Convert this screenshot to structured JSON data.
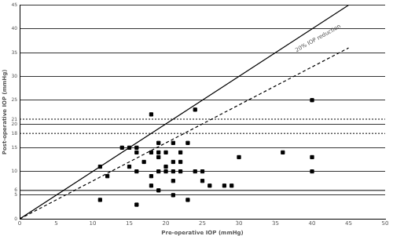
{
  "chart_data": {
    "type": "scatter",
    "x_label": "Pre-operative IOP (mmHg)",
    "y_label": "Post-operative IOP (mmHg)",
    "xlim": [
      0,
      50
    ],
    "xticks": [
      0,
      5,
      10,
      15,
      20,
      25,
      30,
      35,
      40,
      45,
      50
    ],
    "ylim": [
      0,
      45
    ],
    "yticks": [
      0,
      5,
      6,
      10,
      15,
      18,
      20,
      21,
      25,
      30,
      35,
      40,
      45
    ],
    "grid": "y",
    "series": [
      {
        "type": "scatter",
        "marker": "square",
        "color": "#000000",
        "x": [
          11,
          11,
          12,
          14,
          15,
          15,
          16,
          16,
          16,
          16,
          17,
          18,
          18,
          18,
          18,
          19,
          19,
          19,
          19,
          19,
          20,
          20,
          20,
          21,
          21,
          21,
          21,
          21,
          22,
          22,
          22,
          23,
          23,
          24,
          24,
          25,
          25,
          26,
          28,
          29,
          30,
          36,
          40,
          40,
          40
        ],
        "values": [
          11,
          4,
          9,
          15,
          15,
          11,
          15,
          14,
          10,
          3,
          12,
          22,
          14,
          9,
          7,
          16,
          14,
          13,
          10,
          6,
          11,
          10,
          14,
          16,
          12,
          8,
          5,
          10,
          14,
          12,
          10,
          16,
          4,
          23,
          10,
          10,
          8,
          7,
          7,
          7,
          13,
          14,
          25,
          13,
          10
        ]
      },
      {
        "type": "line",
        "line_style": "solid",
        "color": "#000000",
        "x": [
          0,
          45
        ],
        "values": [
          0,
          45
        ]
      },
      {
        "type": "line",
        "line_style": "dashed",
        "color": "#000000",
        "x": [
          0,
          45
        ],
        "values": [
          0,
          36
        ]
      }
    ],
    "reference_lines": [
      {
        "y": 6,
        "line_style": "solid",
        "color": "#000000"
      },
      {
        "y": 18,
        "line_style": "dotted",
        "color": "#000000"
      },
      {
        "y": 21,
        "line_style": "dotted",
        "color": "#000000"
      }
    ],
    "annotations": [
      {
        "text": "20% IOP reduction",
        "x": 41,
        "y": 37.5
      }
    ]
  }
}
